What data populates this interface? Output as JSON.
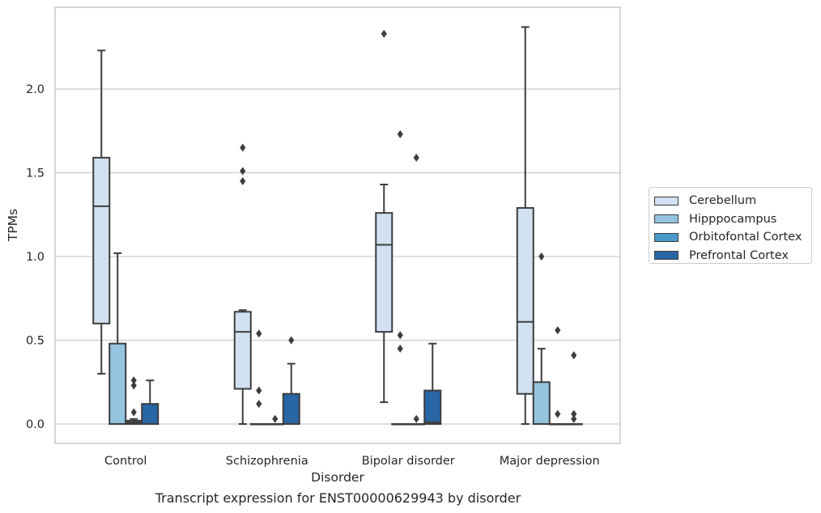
{
  "chart_data": {
    "type": "box",
    "title": "",
    "caption": "Transcript expression for ENST00000629943 by disorder",
    "xlabel": "Disorder",
    "ylabel": "TPMs",
    "ylim": [
      -0.11,
      2.49
    ],
    "yticks": [
      0.0,
      0.5,
      1.0,
      1.5,
      2.0
    ],
    "ytick_labels": [
      "0.0",
      "0.5",
      "1.0",
      "1.5",
      "2.0"
    ],
    "grid": true,
    "legend_position": "right",
    "categories": [
      "Control",
      "Schizophrenia",
      "Bipolar disorder",
      "Major depression"
    ],
    "series": [
      {
        "name": "Cerebellum",
        "color": "#d0e1f2",
        "boxes": [
          {
            "q1": 0.6,
            "median": 1.3,
            "q3": 1.59,
            "whisker_low": 0.3,
            "whisker_high": 2.23,
            "outliers": []
          },
          {
            "q1": 0.21,
            "median": 0.55,
            "q3": 0.67,
            "whisker_low": 0.0,
            "whisker_high": 0.68,
            "outliers": [
              1.45,
              1.51,
              1.65
            ]
          },
          {
            "q1": 0.55,
            "median": 1.07,
            "q3": 1.26,
            "whisker_low": 0.13,
            "whisker_high": 1.43,
            "outliers": [
              2.33
            ]
          },
          {
            "q1": 0.18,
            "median": 0.61,
            "q3": 1.29,
            "whisker_low": 0.0,
            "whisker_high": 2.37,
            "outliers": []
          }
        ]
      },
      {
        "name": "Hipppocampus",
        "color": "#94c4df",
        "boxes": [
          {
            "q1": 0.0,
            "median": 0.0,
            "q3": 0.48,
            "whisker_low": 0.0,
            "whisker_high": 1.02,
            "outliers": []
          },
          {
            "q1": 0.0,
            "median": 0.0,
            "q3": 0.0,
            "whisker_low": 0.0,
            "whisker_high": 0.0,
            "outliers": [
              0.12,
              0.2,
              0.54
            ]
          },
          {
            "q1": 0.0,
            "median": 0.0,
            "q3": 0.0,
            "whisker_low": 0.0,
            "whisker_high": 0.0,
            "outliers": [
              0.45,
              0.53,
              1.73
            ]
          },
          {
            "q1": 0.0,
            "median": 0.0,
            "q3": 0.25,
            "whisker_low": 0.0,
            "whisker_high": 0.45,
            "outliers": [
              1.0
            ]
          }
        ]
      },
      {
        "name": "Orbitofontal Cortex",
        "color": "#4a98c9",
        "boxes": [
          {
            "q1": 0.0,
            "median": 0.01,
            "q3": 0.02,
            "whisker_low": 0.0,
            "whisker_high": 0.03,
            "outliers": [
              0.07,
              0.23,
              0.26
            ]
          },
          {
            "q1": 0.0,
            "median": 0.0,
            "q3": 0.0,
            "whisker_low": 0.0,
            "whisker_high": 0.0,
            "outliers": [
              0.03
            ]
          },
          {
            "q1": 0.0,
            "median": 0.0,
            "q3": 0.0,
            "whisker_low": 0.0,
            "whisker_high": 0.0,
            "outliers": [
              0.03,
              1.59
            ]
          },
          {
            "q1": 0.0,
            "median": 0.0,
            "q3": 0.0,
            "whisker_low": 0.0,
            "whisker_high": 0.0,
            "outliers": [
              0.06,
              0.56
            ]
          }
        ]
      },
      {
        "name": "Prefrontal Cortex",
        "color": "#2866a6",
        "boxes": [
          {
            "q1": 0.0,
            "median": 0.0,
            "q3": 0.12,
            "whisker_low": 0.0,
            "whisker_high": 0.26,
            "outliers": []
          },
          {
            "q1": 0.0,
            "median": 0.0,
            "q3": 0.18,
            "whisker_low": 0.0,
            "whisker_high": 0.36,
            "outliers": [
              0.5
            ]
          },
          {
            "q1": 0.0,
            "median": 0.01,
            "q3": 0.2,
            "whisker_low": 0.0,
            "whisker_high": 0.48,
            "outliers": []
          },
          {
            "q1": 0.0,
            "median": 0.0,
            "q3": 0.0,
            "whisker_low": 0.0,
            "whisker_high": 0.0,
            "outliers": [
              0.03,
              0.06,
              0.41
            ]
          }
        ]
      }
    ]
  }
}
